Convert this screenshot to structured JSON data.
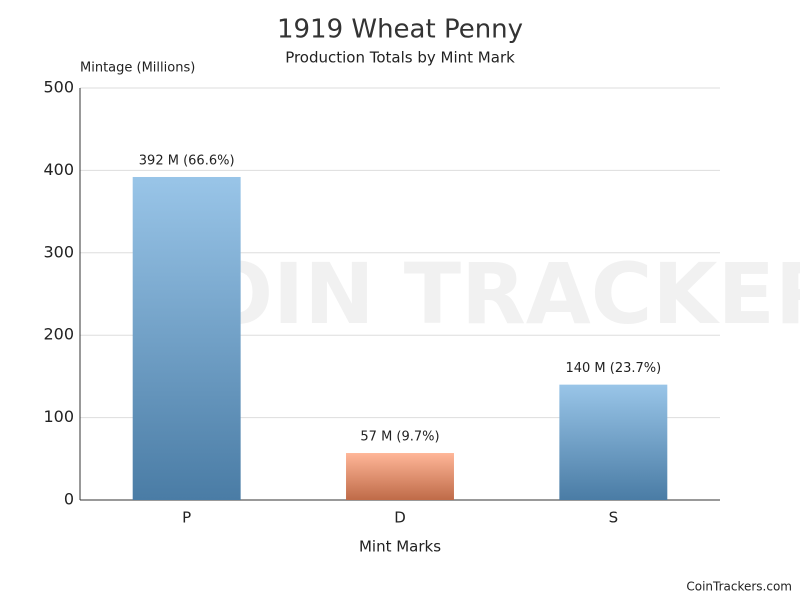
{
  "chart_data": {
    "type": "bar",
    "title": "1919 Wheat Penny",
    "subtitle": "Production Totals by Mint Mark",
    "y_label": "Mintage (Millions)",
    "x_label": "Mint Marks",
    "categories": [
      "P",
      "D",
      "S"
    ],
    "values": [
      392,
      57,
      140
    ],
    "value_labels": [
      "392 M (66.6%)",
      "57 M (9.7%)",
      "140 M (23.7%)"
    ],
    "colors": [
      "#62a5dc",
      "#ff8f60",
      "#62a5dc"
    ],
    "ylim": [
      0,
      500
    ],
    "yticks": [
      0,
      100,
      200,
      300,
      400,
      500
    ],
    "grid": true
  },
  "watermark": "COIN TRACKERS",
  "footer": "CoinTrackers.com"
}
